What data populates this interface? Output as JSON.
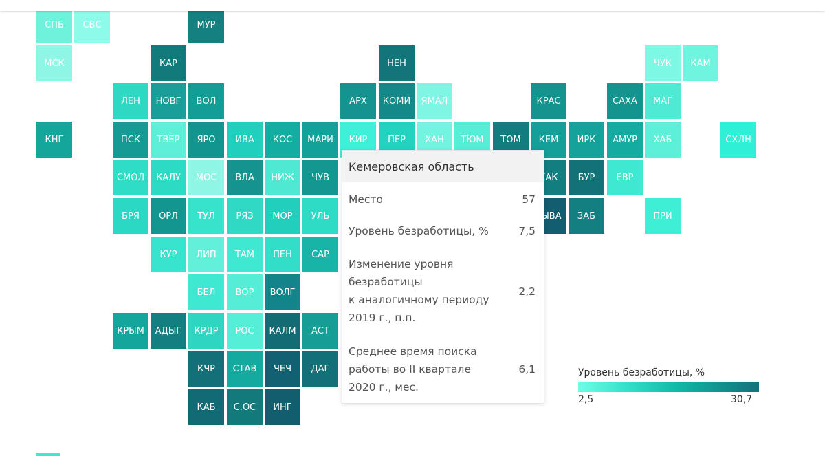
{
  "legend": {
    "title": "Уровень безработицы, %",
    "min": "2,5",
    "max": "30,7",
    "color_min": "#6ffde7",
    "color_max": "#12707a"
  },
  "tooltip": {
    "region": "Кемеровская область",
    "rows": [
      {
        "label": "Место",
        "value": "57"
      },
      {
        "label": "Уровень безработицы, %",
        "value": "7,5"
      },
      {
        "label": "Изменение уровня\nбезработицы\nк аналогичному периоду\n2019 г., п.п.",
        "value": "2,2"
      },
      {
        "label": "Среднее время поиска\nработы во II квартале\n2020 г., мес.",
        "value": "6,1"
      }
    ]
  },
  "tiles": [
    {
      "label": "СПБ",
      "col": 0,
      "row": 0,
      "color": "#6ff2dc"
    },
    {
      "label": "СВС",
      "col": 1,
      "row": 0,
      "color": "#8efae9"
    },
    {
      "label": "МУР",
      "col": 4,
      "row": 0,
      "color": "#14807f"
    },
    {
      "label": "МСК",
      "col": 0,
      "row": 1,
      "color": "#8ff6e6"
    },
    {
      "label": "КАР",
      "col": 3,
      "row": 1,
      "color": "#137a7c"
    },
    {
      "label": "НЕН",
      "col": 9,
      "row": 1,
      "color": "#137479"
    },
    {
      "label": "ЧУК",
      "col": 16,
      "row": 1,
      "color": "#7cf8e4"
    },
    {
      "label": "КАМ",
      "col": 17,
      "row": 1,
      "color": "#6ff5df"
    },
    {
      "label": "ЛЕН",
      "col": 2,
      "row": 2,
      "color": "#2fd8c3"
    },
    {
      "label": "НОВГ",
      "col": 3,
      "row": 2,
      "color": "#1a9e9a"
    },
    {
      "label": "ВОЛ",
      "col": 4,
      "row": 2,
      "color": "#129d96"
    },
    {
      "label": "АРХ",
      "col": 8,
      "row": 2,
      "color": "#149390"
    },
    {
      "label": "КОМИ",
      "col": 9,
      "row": 2,
      "color": "#138a89"
    },
    {
      "label": "ЯМАЛ",
      "col": 10,
      "row": 2,
      "color": "#7ef6e3"
    },
    {
      "label": "КРАС",
      "col": 13,
      "row": 2,
      "color": "#14938f"
    },
    {
      "label": "САХА",
      "col": 15,
      "row": 2,
      "color": "#13948f"
    },
    {
      "label": "МАГ",
      "col": 16,
      "row": 2,
      "color": "#4fead3"
    },
    {
      "label": "КНГ",
      "col": 0,
      "row": 3,
      "color": "#14a69b"
    },
    {
      "label": "ПСК",
      "col": 2,
      "row": 3,
      "color": "#159a94"
    },
    {
      "label": "ТВЕР",
      "col": 3,
      "row": 3,
      "color": "#5eefd9"
    },
    {
      "label": "ЯРО",
      "col": 4,
      "row": 3,
      "color": "#13958f"
    },
    {
      "label": "ИВА",
      "col": 5,
      "row": 3,
      "color": "#21d0bc"
    },
    {
      "label": "КОС",
      "col": 6,
      "row": 3,
      "color": "#14ada1"
    },
    {
      "label": "МАРИ",
      "col": 7,
      "row": 3,
      "color": "#13a29a"
    },
    {
      "label": "КИР",
      "col": 8,
      "row": 3,
      "color": "#3ff0d8"
    },
    {
      "label": "ПЕР",
      "col": 9,
      "row": 3,
      "color": "#22d3c0"
    },
    {
      "label": "ХАН",
      "col": 10,
      "row": 3,
      "color": "#72f4e0"
    },
    {
      "label": "ТЮМ",
      "col": 11,
      "row": 3,
      "color": "#56eed7"
    },
    {
      "label": "ТОМ",
      "col": 12,
      "row": 3,
      "color": "#137c7f"
    },
    {
      "label": "КЕМ",
      "col": 13,
      "row": 3,
      "color": "#149f98"
    },
    {
      "label": "ИРК",
      "col": 14,
      "row": 3,
      "color": "#14a29a"
    },
    {
      "label": "АМУР",
      "col": 15,
      "row": 3,
      "color": "#14aba0"
    },
    {
      "label": "ХАБ",
      "col": 16,
      "row": 3,
      "color": "#5cf0d9"
    },
    {
      "label": "СХЛН",
      "col": 18,
      "row": 3,
      "color": "#2ff0d7"
    },
    {
      "label": "СМОЛ",
      "col": 2,
      "row": 4,
      "color": "#2fdcc6"
    },
    {
      "label": "КАЛУ",
      "col": 3,
      "row": 4,
      "color": "#2ddac4"
    },
    {
      "label": "МОС",
      "col": 4,
      "row": 4,
      "color": "#8ff5e5"
    },
    {
      "label": "ВЛА",
      "col": 5,
      "row": 4,
      "color": "#14938f"
    },
    {
      "label": "НИЖ",
      "col": 6,
      "row": 4,
      "color": "#4fe8d2"
    },
    {
      "label": "ЧУВ",
      "col": 7,
      "row": 4,
      "color": "#149691"
    },
    {
      "label": "ХАК",
      "col": 13,
      "row": 4,
      "color": "#137e80"
    },
    {
      "label": "БУР",
      "col": 14,
      "row": 4,
      "color": "#137178"
    },
    {
      "label": "ЕВР",
      "col": 15,
      "row": 4,
      "color": "#3fe8d1"
    },
    {
      "label": "БРЯ",
      "col": 2,
      "row": 5,
      "color": "#2ad8c3"
    },
    {
      "label": "ОРЛ",
      "col": 3,
      "row": 5,
      "color": "#13968f"
    },
    {
      "label": "ТУЛ",
      "col": 4,
      "row": 5,
      "color": "#38e3cc"
    },
    {
      "label": "РЯЗ",
      "col": 5,
      "row": 5,
      "color": "#2fd9c4"
    },
    {
      "label": "МОР",
      "col": 6,
      "row": 5,
      "color": "#22cfbc"
    },
    {
      "label": "УЛЬ",
      "col": 7,
      "row": 5,
      "color": "#2edbc5"
    },
    {
      "label": "ТЫВА",
      "col": 13,
      "row": 5,
      "color": "#125d6f"
    },
    {
      "label": "ЗАБ",
      "col": 14,
      "row": 5,
      "color": "#137f81"
    },
    {
      "label": "ПРИ",
      "col": 16,
      "row": 5,
      "color": "#3eefd6"
    },
    {
      "label": "КУР",
      "col": 3,
      "row": 6,
      "color": "#38e4cd"
    },
    {
      "label": "ЛИП",
      "col": 4,
      "row": 6,
      "color": "#62f0da"
    },
    {
      "label": "ТАМ",
      "col": 5,
      "row": 6,
      "color": "#3fe8d1"
    },
    {
      "label": "ПЕН",
      "col": 6,
      "row": 6,
      "color": "#32dec8"
    },
    {
      "label": "САР",
      "col": 7,
      "row": 6,
      "color": "#18b4a8"
    },
    {
      "label": "БЕЛ",
      "col": 4,
      "row": 7,
      "color": "#3fe9d1"
    },
    {
      "label": "ВОР",
      "col": 5,
      "row": 7,
      "color": "#55edd6"
    },
    {
      "label": "ВОЛГ",
      "col": 6,
      "row": 7,
      "color": "#13858a"
    },
    {
      "label": "КРЫМ",
      "col": 2,
      "row": 8,
      "color": "#14a69d"
    },
    {
      "label": "АДЫГ",
      "col": 3,
      "row": 8,
      "color": "#137f81"
    },
    {
      "label": "КРДР",
      "col": 4,
      "row": 8,
      "color": "#2ed6c1"
    },
    {
      "label": "РОС",
      "col": 5,
      "row": 8,
      "color": "#55eed6"
    },
    {
      "label": "КАЛМ",
      "col": 6,
      "row": 8,
      "color": "#136c74"
    },
    {
      "label": "АСТ",
      "col": 7,
      "row": 8,
      "color": "#159d96"
    },
    {
      "label": "КЧР",
      "col": 4,
      "row": 9,
      "color": "#137078"
    },
    {
      "label": "СТАВ",
      "col": 5,
      "row": 9,
      "color": "#14aaa0"
    },
    {
      "label": "ЧЕЧ",
      "col": 6,
      "row": 9,
      "color": "#126172"
    },
    {
      "label": "ДАГ",
      "col": 7,
      "row": 9,
      "color": "#137078"
    },
    {
      "label": "КАБ",
      "col": 4,
      "row": 10,
      "color": "#126a74"
    },
    {
      "label": "С.ОС",
      "col": 5,
      "row": 10,
      "color": "#137a7c"
    },
    {
      "label": "ИНГ",
      "col": 6,
      "row": 10,
      "color": "#125d6e"
    }
  ]
}
